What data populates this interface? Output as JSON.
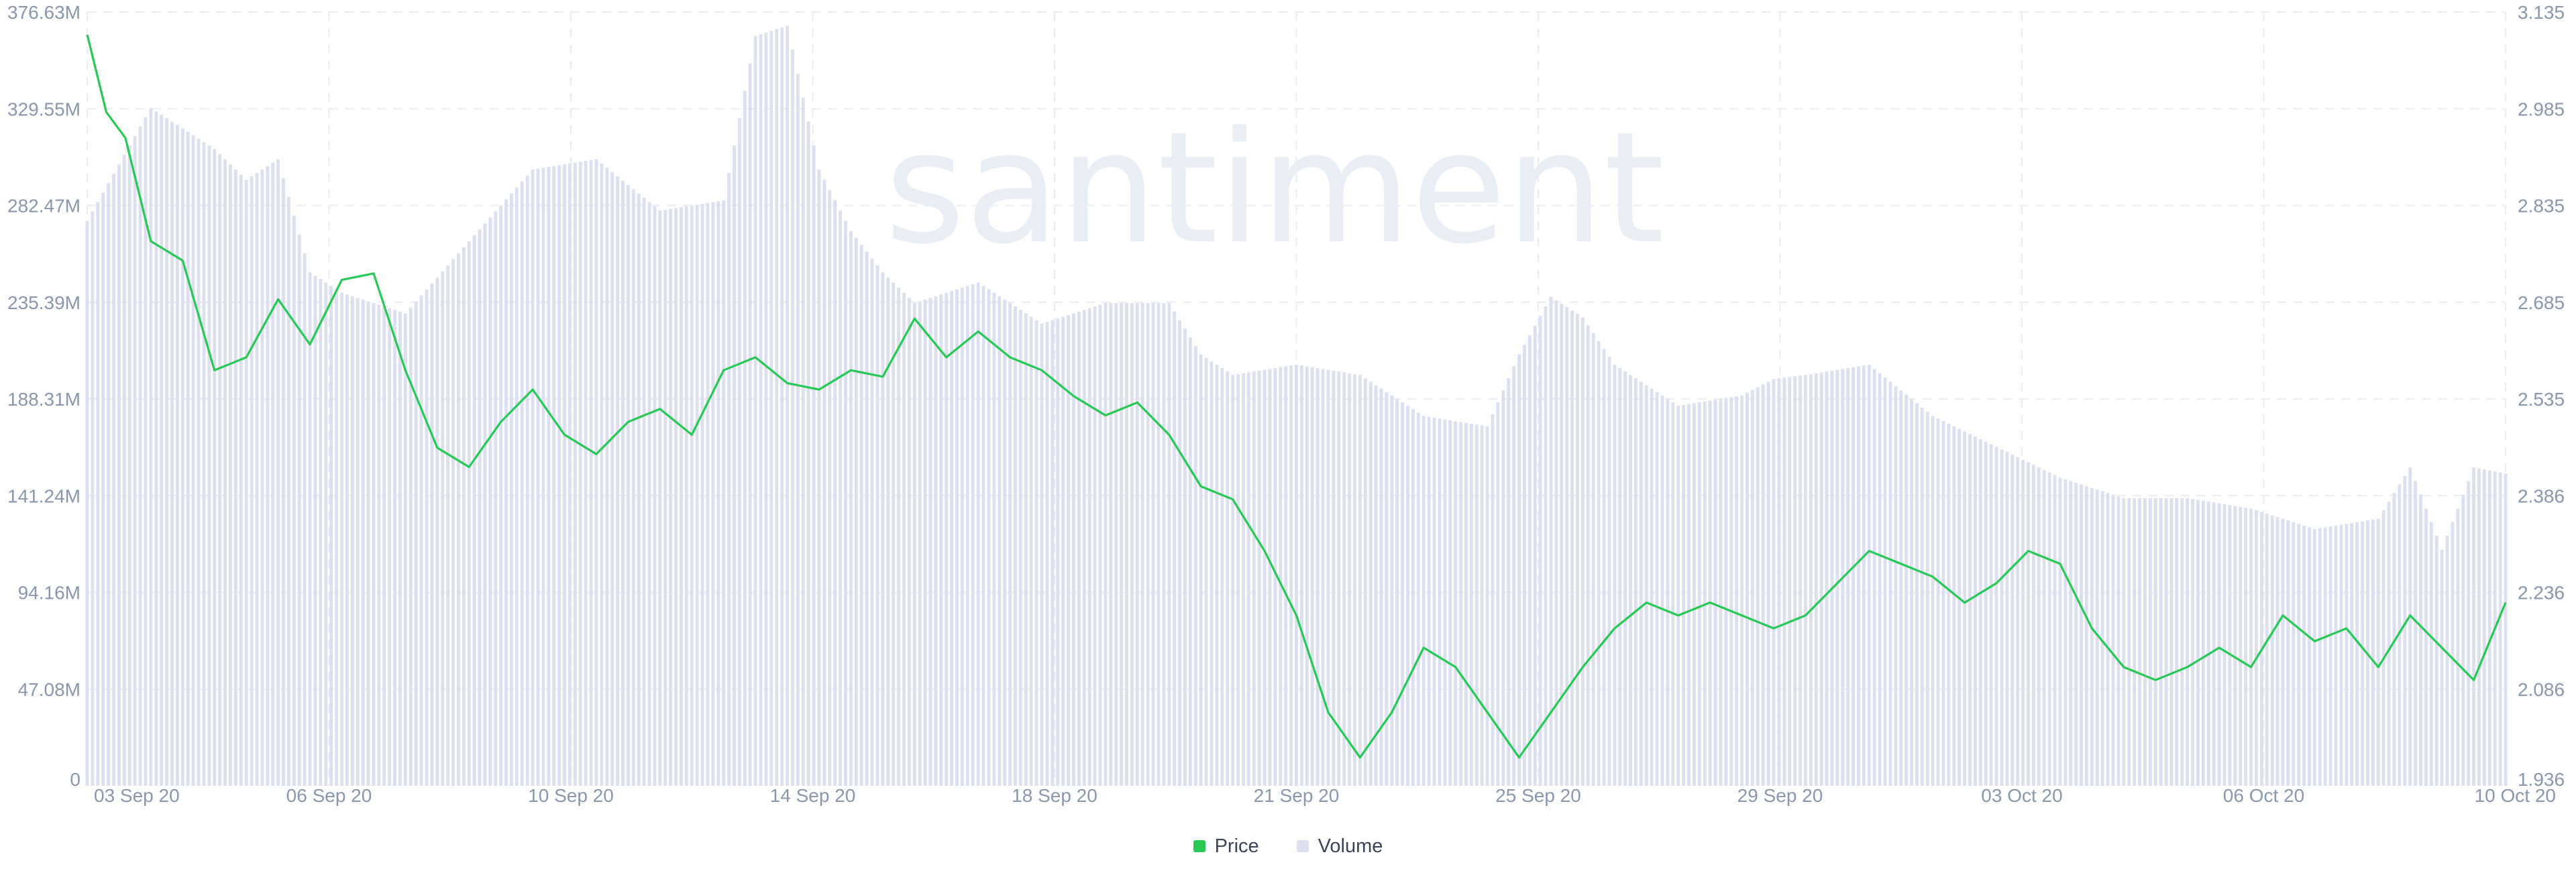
{
  "watermark": "santiment",
  "legend": {
    "price_label": "Price",
    "volume_label": "Volume"
  },
  "colors": {
    "price": "#26c953",
    "volume": "#dcdff0",
    "grid": "#ebedf3",
    "tick": "#8a96ad",
    "watermark": "#e9edf4"
  },
  "chart_data": {
    "type": "line+bar",
    "x_tick_labels": [
      "03 Sep 20",
      "06 Sep 20",
      "10 Sep 20",
      "14 Sep 20",
      "18 Sep 20",
      "21 Sep 20",
      "25 Sep 20",
      "29 Sep 20",
      "03 Oct 20",
      "06 Oct 20",
      "10 Oct 20"
    ],
    "left_axis": {
      "series": "Volume",
      "tick_labels": [
        "0",
        "47.08M",
        "94.16M",
        "141.24M",
        "188.31M",
        "235.39M",
        "282.47M",
        "329.55M",
        "376.63M"
      ],
      "range": [
        0,
        376.63
      ]
    },
    "right_axis": {
      "series": "Price",
      "tick_labels": [
        "1.936",
        "2.086",
        "2.236",
        "2.386",
        "2.535",
        "2.685",
        "2.835",
        "2.985",
        "3.135"
      ],
      "range": [
        1.936,
        3.135
      ]
    },
    "grid": true,
    "legend_position": "bottom-center",
    "x_range_days": [
      0,
      38.0
    ],
    "series": [
      {
        "name": "Volume",
        "kind": "bar",
        "unit": "M",
        "points": [
          [
            0.0,
            275
          ],
          [
            1.0,
            330
          ],
          [
            2.0,
            310
          ],
          [
            2.5,
            295
          ],
          [
            3.0,
            305
          ],
          [
            3.5,
            250
          ],
          [
            4.0,
            240
          ],
          [
            5.0,
            230
          ],
          [
            6.0,
            265
          ],
          [
            7.0,
            300
          ],
          [
            8.0,
            305
          ],
          [
            9.0,
            280
          ],
          [
            10.0,
            285
          ],
          [
            10.5,
            365
          ],
          [
            11.0,
            370
          ],
          [
            11.5,
            300
          ],
          [
            12.0,
            270
          ],
          [
            12.5,
            250
          ],
          [
            13.0,
            235
          ],
          [
            14.0,
            245
          ],
          [
            15.0,
            225
          ],
          [
            16.0,
            235
          ],
          [
            17.0,
            235
          ],
          [
            17.5,
            210
          ],
          [
            18.0,
            200
          ],
          [
            19.0,
            205
          ],
          [
            20.0,
            200
          ],
          [
            21.0,
            180
          ],
          [
            22.0,
            175
          ],
          [
            22.5,
            210
          ],
          [
            23.0,
            238
          ],
          [
            23.5,
            228
          ],
          [
            24.0,
            205
          ],
          [
            25.0,
            185
          ],
          [
            26.0,
            190
          ],
          [
            26.5,
            198
          ],
          [
            27.0,
            200
          ],
          [
            28.0,
            205
          ],
          [
            29.0,
            180
          ],
          [
            30.0,
            165
          ],
          [
            31.0,
            150
          ],
          [
            32.0,
            140
          ],
          [
            33.0,
            140
          ],
          [
            34.0,
            135
          ],
          [
            35.0,
            125
          ],
          [
            36.0,
            130
          ],
          [
            36.5,
            155
          ],
          [
            37.0,
            115
          ],
          [
            37.5,
            155
          ],
          [
            38.0,
            152
          ]
        ]
      },
      {
        "name": "Price",
        "kind": "line",
        "points": [
          [
            0.0,
            3.1
          ],
          [
            0.3,
            2.98
          ],
          [
            0.6,
            2.94
          ],
          [
            1.0,
            2.78
          ],
          [
            1.5,
            2.75
          ],
          [
            2.0,
            2.58
          ],
          [
            2.5,
            2.6
          ],
          [
            3.0,
            2.69
          ],
          [
            3.5,
            2.62
          ],
          [
            4.0,
            2.72
          ],
          [
            4.5,
            2.73
          ],
          [
            5.0,
            2.58
          ],
          [
            5.5,
            2.46
          ],
          [
            6.0,
            2.43
          ],
          [
            6.5,
            2.5
          ],
          [
            7.0,
            2.55
          ],
          [
            7.5,
            2.48
          ],
          [
            8.0,
            2.45
          ],
          [
            8.5,
            2.5
          ],
          [
            9.0,
            2.52
          ],
          [
            9.5,
            2.48
          ],
          [
            10.0,
            2.58
          ],
          [
            10.5,
            2.6
          ],
          [
            11.0,
            2.56
          ],
          [
            11.5,
            2.55
          ],
          [
            12.0,
            2.58
          ],
          [
            12.5,
            2.57
          ],
          [
            13.0,
            2.66
          ],
          [
            13.5,
            2.6
          ],
          [
            14.0,
            2.64
          ],
          [
            14.5,
            2.6
          ],
          [
            15.0,
            2.58
          ],
          [
            15.5,
            2.54
          ],
          [
            16.0,
            2.51
          ],
          [
            16.5,
            2.53
          ],
          [
            17.0,
            2.48
          ],
          [
            17.5,
            2.4
          ],
          [
            18.0,
            2.38
          ],
          [
            18.5,
            2.3
          ],
          [
            19.0,
            2.2
          ],
          [
            19.5,
            2.05
          ],
          [
            20.0,
            1.98
          ],
          [
            20.5,
            2.05
          ],
          [
            21.0,
            2.15
          ],
          [
            21.5,
            2.12
          ],
          [
            22.0,
            2.05
          ],
          [
            22.5,
            1.98
          ],
          [
            23.0,
            2.05
          ],
          [
            23.5,
            2.12
          ],
          [
            24.0,
            2.18
          ],
          [
            24.5,
            2.22
          ],
          [
            25.0,
            2.2
          ],
          [
            25.5,
            2.22
          ],
          [
            26.0,
            2.2
          ],
          [
            26.5,
            2.18
          ],
          [
            27.0,
            2.2
          ],
          [
            27.5,
            2.25
          ],
          [
            28.0,
            2.3
          ],
          [
            28.5,
            2.28
          ],
          [
            29.0,
            2.26
          ],
          [
            29.5,
            2.22
          ],
          [
            30.0,
            2.25
          ],
          [
            30.5,
            2.3
          ],
          [
            31.0,
            2.28
          ],
          [
            31.5,
            2.18
          ],
          [
            32.0,
            2.12
          ],
          [
            32.5,
            2.1
          ],
          [
            33.0,
            2.12
          ],
          [
            33.5,
            2.15
          ],
          [
            34.0,
            2.12
          ],
          [
            34.5,
            2.2
          ],
          [
            35.0,
            2.16
          ],
          [
            35.5,
            2.18
          ],
          [
            36.0,
            2.12
          ],
          [
            36.5,
            2.2
          ],
          [
            37.0,
            2.15
          ],
          [
            37.5,
            2.1
          ],
          [
            38.0,
            2.22
          ]
        ]
      }
    ]
  }
}
